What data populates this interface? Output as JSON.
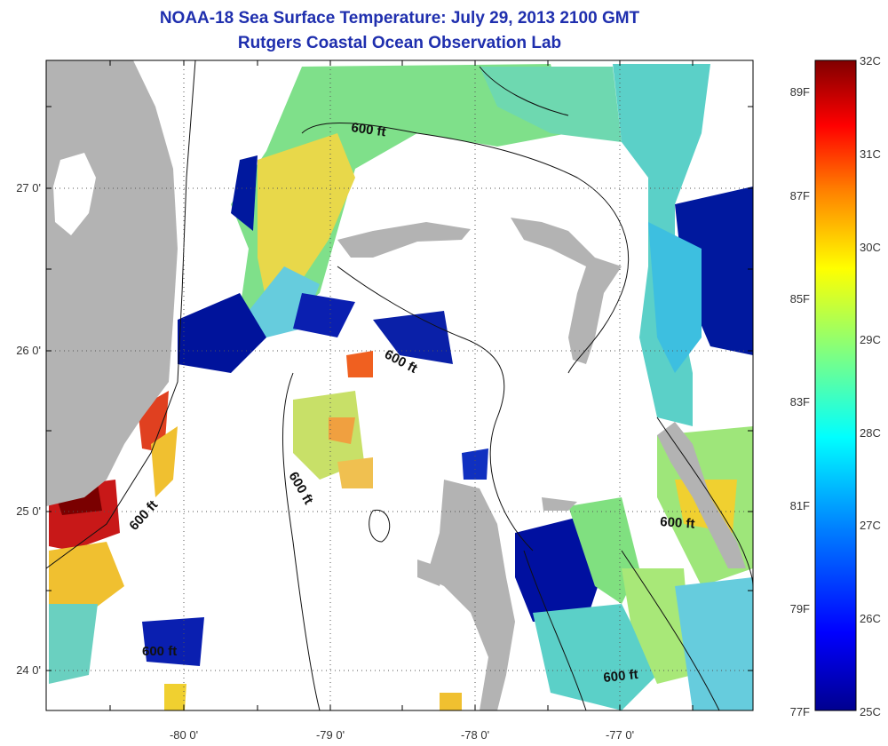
{
  "title": "NOAA-18 Sea Surface Temperature:  July 29, 2013 2100 GMT",
  "subtitle": "Rutgers Coastal Ocean Observation Lab",
  "lon_ticks": [
    "-80 0'",
    "-79 0'",
    "-78 0'",
    "-77 0'"
  ],
  "lat_ticks": [
    "27 0'",
    "26 0'",
    "25 0'",
    "24 0'"
  ],
  "contour_label": "600 ft",
  "colorbar": {
    "celsius": [
      "32C",
      "31C",
      "30C",
      "29C",
      "28C",
      "27C",
      "26C",
      "25C"
    ],
    "fahrenheit": [
      "89F",
      "87F",
      "85F",
      "83F",
      "81F",
      "79F",
      "77F"
    ],
    "range_c": [
      25,
      32
    ]
  },
  "colors": {
    "title": "#1f2fae",
    "land": "#b3b3b3",
    "grid": "#555555"
  }
}
